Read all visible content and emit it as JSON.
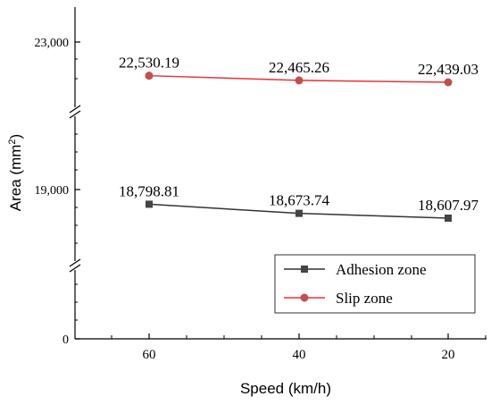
{
  "chart_data": {
    "type": "line",
    "title": "",
    "xlabel": "Speed (km/h)",
    "ylabel_text": "Area (mm",
    "ylabel_sup": "2",
    "ylabel_close": ")",
    "categories": [
      "60",
      "40",
      "20"
    ],
    "y_ticks": [
      "23,000",
      "19,000",
      "0"
    ],
    "y_axis_breaks": true,
    "grid": false,
    "legend_position": "lower-right",
    "series": [
      {
        "name": "Adhesion zone",
        "values": [
          18798.81,
          18673.74,
          18607.97
        ],
        "labels": [
          "18,798.81",
          "18,673.74",
          "18,607.97"
        ],
        "color": "#333333",
        "marker": "square"
      },
      {
        "name": "Slip zone",
        "values": [
          22530.19,
          22465.26,
          22439.03
        ],
        "labels": [
          "22,530.19",
          "22,465.26",
          "22,439.03"
        ],
        "color": "#e8323c",
        "marker_fill": "#c0504d",
        "marker": "circle"
      }
    ]
  }
}
